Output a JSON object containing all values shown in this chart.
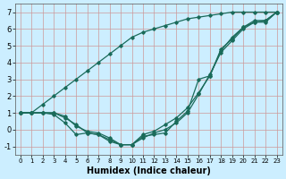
{
  "xlabel": "Humidex (Indice chaleur)",
  "bg_color": "#cceeff",
  "grid_color": "#cc9999",
  "line_color": "#1a6b5a",
  "xlim": [
    -0.5,
    23.5
  ],
  "ylim": [
    -1.5,
    7.5
  ],
  "xticks": [
    0,
    1,
    2,
    3,
    4,
    5,
    6,
    7,
    8,
    9,
    10,
    11,
    12,
    13,
    14,
    15,
    16,
    17,
    18,
    19,
    20,
    21,
    22,
    23
  ],
  "yticks": [
    -1,
    0,
    1,
    2,
    3,
    4,
    5,
    6,
    7
  ],
  "series": [
    [
      1.0,
      1.0,
      1.0,
      0.9,
      0.4,
      -0.3,
      -0.2,
      -0.3,
      -0.7,
      -0.9,
      -0.9,
      -0.4,
      -0.3,
      -0.2,
      0.5,
      1.1,
      3.0,
      3.2,
      4.7,
      5.5,
      6.1,
      6.5,
      6.5,
      7.0
    ],
    [
      1.0,
      1.0,
      1.0,
      1.0,
      0.7,
      0.3,
      -0.2,
      -0.3,
      -0.6,
      -0.9,
      -0.9,
      -0.5,
      -0.2,
      0.0,
      0.4,
      1.0,
      2.1,
      3.3,
      4.6,
      5.3,
      6.0,
      6.4,
      6.5,
      7.0
    ],
    [
      1.0,
      1.0,
      1.5,
      2.0,
      2.5,
      3.0,
      3.5,
      4.0,
      4.5,
      5.0,
      5.5,
      5.8,
      6.0,
      6.2,
      6.4,
      6.6,
      6.7,
      6.8,
      6.9,
      7.0,
      7.0,
      7.0,
      7.0,
      7.0
    ],
    [
      1.0,
      1.0,
      1.0,
      1.0,
      0.8,
      0.2,
      -0.1,
      -0.2,
      -0.5,
      -0.9,
      -0.9,
      -0.3,
      -0.1,
      0.3,
      0.7,
      1.3,
      2.2,
      3.2,
      4.8,
      5.4,
      6.1,
      6.4,
      6.4,
      7.0
    ]
  ]
}
